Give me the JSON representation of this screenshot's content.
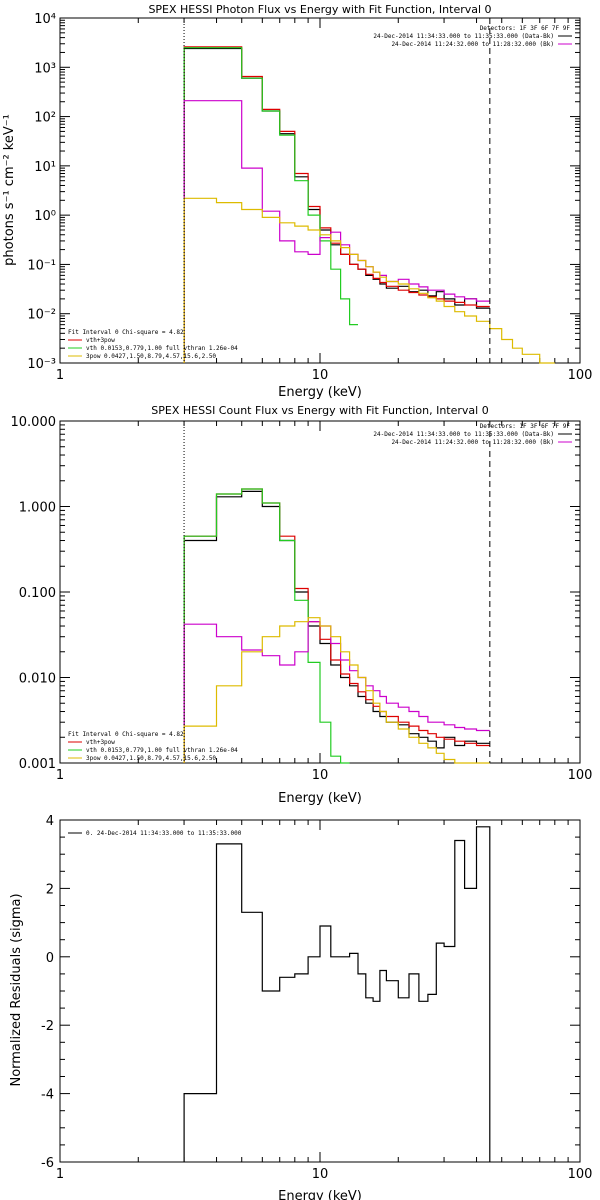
{
  "chart_data": [
    {
      "type": "line",
      "title": "SPEX HESSI Photon Flux vs Energy with Fit Function, Interval 0",
      "xlabel": "Energy (keV)",
      "ylabel": "photons s⁻¹ cm⁻² keV⁻¹",
      "xscale": "log",
      "yscale": "log",
      "xlim": [
        1,
        100
      ],
      "ylim": [
        0.001,
        10000
      ],
      "x_ticks": [
        "1",
        "10",
        "100"
      ],
      "y_ticks": [
        "10⁻³",
        "10⁻²",
        "10⁻¹",
        "10⁰",
        "10¹",
        "10²",
        "10³",
        "10⁴"
      ],
      "legend_right": {
        "header": "Detectors: 1F 3F 6F 7F 9F",
        "entries": [
          {
            "text": "24-Dec-2014 11:34:33.000 to 11:35:33.000 (Data-Bk)",
            "color": "#000000"
          },
          {
            "text": "24-Dec-2014 11:24:32.000 to 11:28:32.000 (Bk)",
            "color": "#cc00cc"
          }
        ]
      },
      "legend_left": {
        "header": "Fit Interval 0   Chi-square = 4.82",
        "entries": [
          {
            "text": "vth+3pow",
            "color": "#dd0000"
          },
          {
            "text": "vth 0.0153,0.779,1.00  full vthran 1.26e-04",
            "color": "#22cc22"
          },
          {
            "text": "3pow 0.0427,1.50,8.79,4.57,15.6,2.50",
            "color": "#ddbb00"
          }
        ]
      },
      "vlines": [
        {
          "x": 3,
          "style": "dotted"
        },
        {
          "x": 45,
          "style": "dashed"
        }
      ],
      "series": [
        {
          "color": "#000000",
          "edges": [
            3,
            4,
            5,
            6,
            7,
            8,
            9,
            10,
            11,
            12,
            13,
            14,
            15,
            16,
            17,
            18,
            20,
            22,
            24,
            26,
            28,
            30,
            33,
            36,
            40,
            45
          ],
          "values": [
            2400,
            2400,
            600,
            130,
            45,
            6,
            1.3,
            0.5,
            0.25,
            0.16,
            0.1,
            0.08,
            0.06,
            0.05,
            0.04,
            0.033,
            0.036,
            0.028,
            0.03,
            0.023,
            0.028,
            0.02,
            0.015,
            0.02,
            0.013
          ]
        },
        {
          "color": "#dd0000",
          "edges": [
            3,
            4,
            5,
            6,
            7,
            8,
            9,
            10,
            11,
            12,
            13,
            14,
            15,
            16,
            17,
            18,
            20,
            22,
            24,
            26,
            28,
            30,
            33,
            36,
            40,
            45
          ],
          "values": [
            2600,
            2600,
            650,
            140,
            50,
            7,
            1.5,
            0.55,
            0.27,
            0.16,
            0.1,
            0.08,
            0.063,
            0.052,
            0.043,
            0.036,
            0.03,
            0.027,
            0.024,
            0.022,
            0.02,
            0.018,
            0.017,
            0.015,
            0.014
          ]
        },
        {
          "color": "#22cc22",
          "edges": [
            3,
            4,
            5,
            6,
            7,
            8,
            9,
            10,
            11,
            12,
            13,
            14
          ],
          "values": [
            2500,
            2500,
            600,
            130,
            42,
            5,
            1.0,
            0.3,
            0.08,
            0.02,
            0.006
          ]
        },
        {
          "color": "#cc00cc",
          "edges": [
            3,
            4,
            5,
            6,
            7,
            8,
            9,
            10,
            11,
            12,
            13,
            14,
            15,
            16,
            17,
            18,
            20,
            22,
            24,
            26,
            28,
            30,
            33,
            36,
            40,
            45
          ],
          "values": [
            210,
            210,
            9,
            1.2,
            0.3,
            0.18,
            0.16,
            0.35,
            0.45,
            0.25,
            0.16,
            0.12,
            0.09,
            0.07,
            0.06,
            0.045,
            0.05,
            0.04,
            0.035,
            0.03,
            0.03,
            0.025,
            0.022,
            0.02,
            0.018
          ]
        },
        {
          "color": "#ddbb00",
          "edges": [
            3,
            4,
            5,
            6,
            7,
            8,
            9,
            10,
            11,
            12,
            13,
            14,
            15,
            16,
            17,
            18,
            20,
            22,
            24,
            26,
            28,
            30,
            33,
            36,
            40,
            45,
            50,
            55,
            60,
            70,
            80
          ],
          "values": [
            2.2,
            1.8,
            1.3,
            0.9,
            0.7,
            0.6,
            0.5,
            0.4,
            0.3,
            0.22,
            0.16,
            0.12,
            0.09,
            0.07,
            0.055,
            0.045,
            0.04,
            0.032,
            0.026,
            0.021,
            0.018,
            0.014,
            0.011,
            0.009,
            0.007,
            0.005,
            0.003,
            0.002,
            0.0015,
            0.001
          ]
        }
      ]
    },
    {
      "type": "line",
      "title": "SPEX HESSI Count Flux vs Energy with Fit Function, Interval 0",
      "xlabel": "Energy (keV)",
      "ylabel": "",
      "xscale": "log",
      "yscale": "log",
      "xlim": [
        1,
        100
      ],
      "ylim": [
        0.001,
        10
      ],
      "x_ticks": [
        "1",
        "10",
        "100"
      ],
      "y_ticks": [
        "0.001",
        "0.010",
        "0.100",
        "1.000",
        "10.000"
      ],
      "legend_right": {
        "header": "Detectors: 1F 3F 6F 7F 9F",
        "entries": [
          {
            "text": "24-Dec-2014 11:34:33.000 to 11:35:33.000 (Data-Bk)",
            "color": "#000000"
          },
          {
            "text": "24-Dec-2014 11:24:32.000 to 11:28:32.000 (Bk)",
            "color": "#cc00cc"
          }
        ]
      },
      "legend_left": {
        "header": "Fit Interval 0   Chi-square = 4.82",
        "entries": [
          {
            "text": "vth+3pow",
            "color": "#dd0000"
          },
          {
            "text": "vth 0.0153,0.779,1.00  full vthran 1.26e-04",
            "color": "#22cc22"
          },
          {
            "text": "3pow 0.0427,1.50,8.79,4.57,15.6,2.50",
            "color": "#ddbb00"
          }
        ]
      },
      "vlines": [
        {
          "x": 3,
          "style": "dotted"
        },
        {
          "x": 45,
          "style": "dashed"
        }
      ],
      "series": [
        {
          "color": "#000000",
          "edges": [
            3,
            4,
            5,
            6,
            7,
            8,
            9,
            10,
            11,
            12,
            13,
            14,
            15,
            16,
            17,
            18,
            20,
            22,
            24,
            26,
            28,
            30,
            33,
            36,
            40,
            45
          ],
          "values": [
            0.4,
            1.3,
            1.5,
            1.0,
            0.4,
            0.1,
            0.04,
            0.025,
            0.014,
            0.01,
            0.008,
            0.006,
            0.005,
            0.004,
            0.0035,
            0.003,
            0.0028,
            0.0022,
            0.002,
            0.0018,
            0.0015,
            0.002,
            0.0016,
            0.0018,
            0.0017
          ]
        },
        {
          "color": "#dd0000",
          "edges": [
            3,
            4,
            5,
            6,
            7,
            8,
            9,
            10,
            11,
            12,
            13,
            14,
            15,
            16,
            17,
            18,
            20,
            22,
            24,
            26,
            28,
            30,
            33,
            36,
            40,
            45
          ],
          "values": [
            0.45,
            1.4,
            1.6,
            1.1,
            0.45,
            0.11,
            0.045,
            0.028,
            0.016,
            0.011,
            0.0085,
            0.0068,
            0.0055,
            0.0046,
            0.004,
            0.0035,
            0.003,
            0.0027,
            0.0024,
            0.0022,
            0.002,
            0.0019,
            0.0018,
            0.0017,
            0.0016
          ]
        },
        {
          "color": "#22cc22",
          "edges": [
            3,
            4,
            5,
            6,
            7,
            8,
            9,
            10,
            11,
            12,
            13
          ],
          "values": [
            0.45,
            1.4,
            1.6,
            1.1,
            0.4,
            0.08,
            0.015,
            0.003,
            0.0012,
            0.001
          ]
        },
        {
          "color": "#cc00cc",
          "edges": [
            3,
            4,
            5,
            6,
            7,
            8,
            9,
            10,
            11,
            12,
            13,
            14,
            15,
            16,
            17,
            18,
            20,
            22,
            24,
            26,
            28,
            30,
            33,
            36,
            40,
            45
          ],
          "values": [
            0.042,
            0.03,
            0.021,
            0.018,
            0.014,
            0.02,
            0.045,
            0.04,
            0.025,
            0.016,
            0.012,
            0.01,
            0.008,
            0.007,
            0.006,
            0.005,
            0.0045,
            0.004,
            0.0035,
            0.003,
            0.003,
            0.0028,
            0.0026,
            0.0025,
            0.0024
          ]
        },
        {
          "color": "#ddbb00",
          "edges": [
            3,
            4,
            5,
            6,
            7,
            8,
            9,
            10,
            11,
            12,
            13,
            14,
            15,
            16,
            17,
            18,
            20,
            22,
            24,
            26,
            28,
            30,
            33,
            36,
            40,
            45
          ],
          "values": [
            0.0027,
            0.008,
            0.02,
            0.03,
            0.04,
            0.045,
            0.05,
            0.04,
            0.03,
            0.02,
            0.014,
            0.01,
            0.007,
            0.005,
            0.004,
            0.003,
            0.0025,
            0.002,
            0.0017,
            0.0015,
            0.0013,
            0.0011,
            0.001,
            0.0009,
            0.0008
          ]
        }
      ]
    },
    {
      "type": "line",
      "title": "",
      "xlabel": "Energy (keV)",
      "ylabel": "Normalized Residuals (sigma)",
      "xscale": "log",
      "yscale": "linear",
      "xlim": [
        1,
        100
      ],
      "ylim": [
        -6,
        4
      ],
      "x_ticks": [
        "1",
        "10",
        "100"
      ],
      "y_ticks": [
        "-6",
        "-4",
        "-2",
        "0",
        "2",
        "4"
      ],
      "legend_left": {
        "entries": [
          {
            "text": "0. 24-Dec-2014 11:34:33.000 to 11:35:33.000",
            "color": "#000000"
          }
        ]
      },
      "series": [
        {
          "color": "#000000",
          "edges": [
            3,
            4,
            5,
            6,
            7,
            8,
            9,
            10,
            11,
            12,
            13,
            14,
            15,
            16,
            17,
            18,
            20,
            22,
            24,
            26,
            28,
            30,
            33,
            36,
            40,
            45
          ],
          "values": [
            -4.0,
            3.3,
            1.3,
            -1.0,
            -0.6,
            -0.5,
            0.0,
            0.9,
            0.0,
            0.0,
            0.1,
            -0.5,
            -1.2,
            -1.3,
            -0.4,
            -0.7,
            -1.2,
            -0.5,
            -1.3,
            -1.1,
            0.4,
            0.3,
            3.4,
            2.0,
            3.8
          ]
        }
      ]
    }
  ]
}
